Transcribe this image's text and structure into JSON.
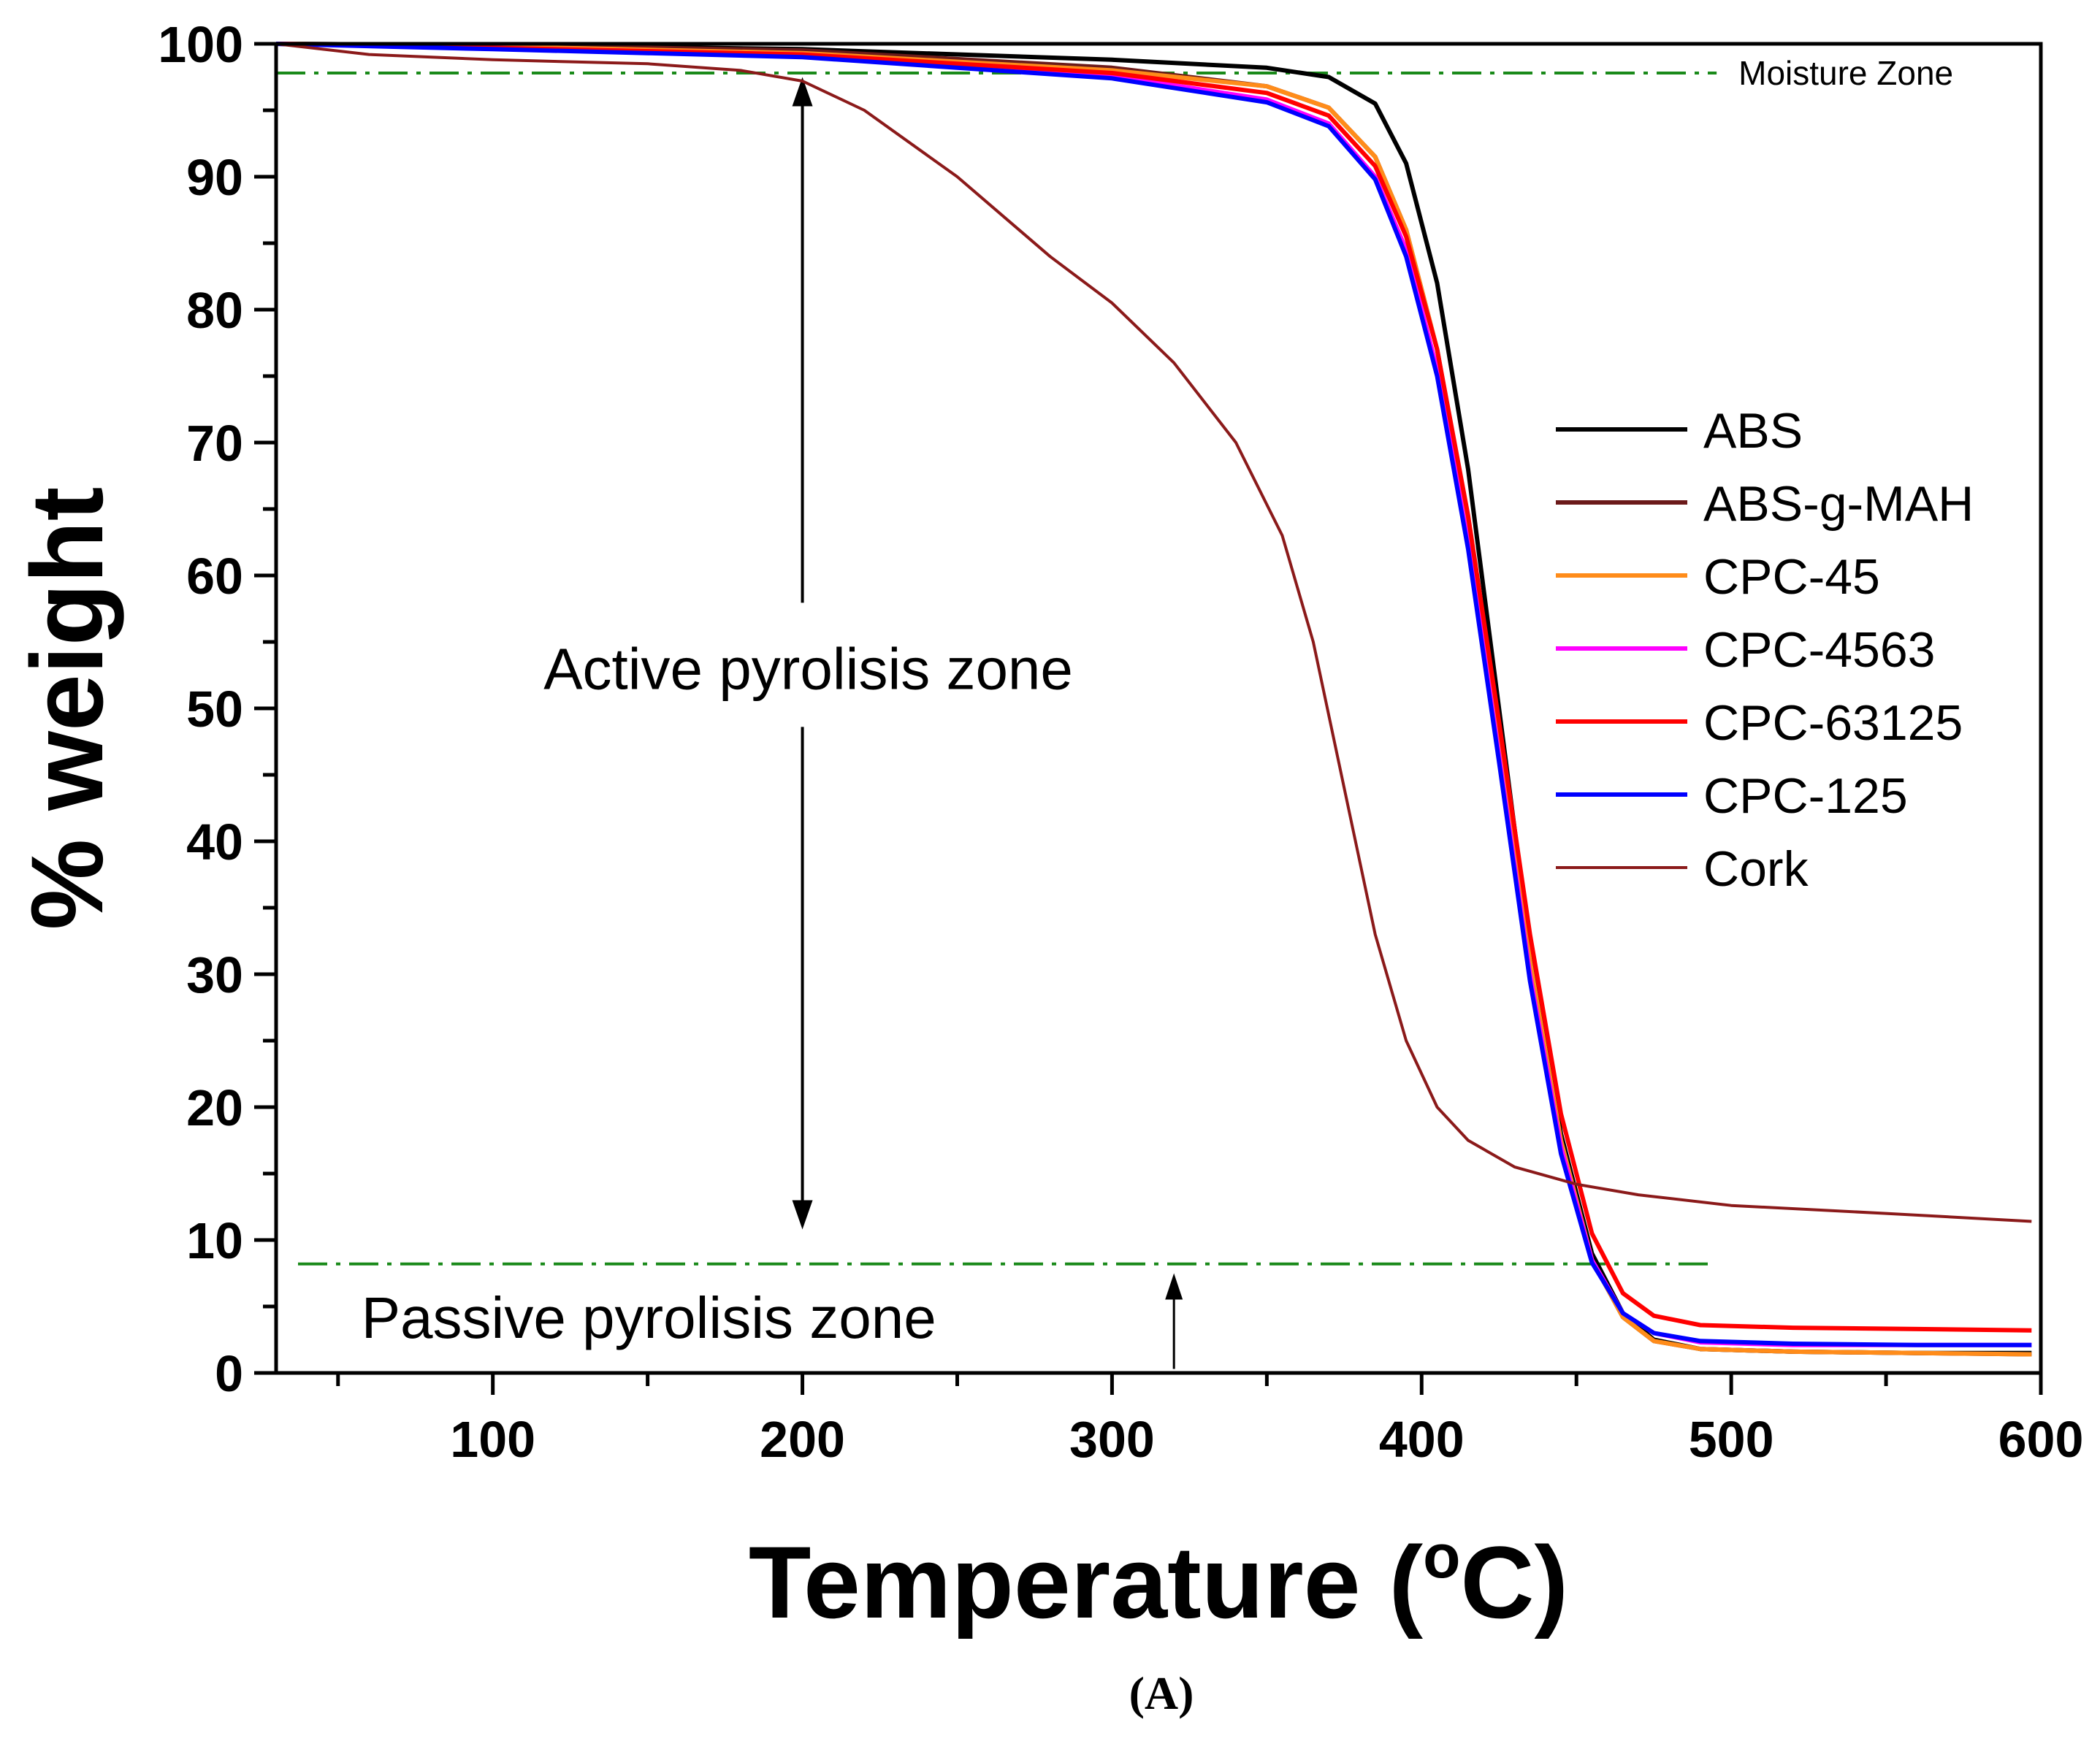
{
  "chart_data": {
    "type": "line",
    "title": "",
    "xlabel": "Temperature (",
    "xlabel_superscript": "o",
    "xlabel_suffix": "C)",
    "ylabel": "% weight",
    "xlim": [
      30,
      600
    ],
    "ylim": [
      0,
      100
    ],
    "x_ticks": [
      100,
      200,
      300,
      400,
      500,
      600
    ],
    "y_ticks": [
      0,
      10,
      20,
      30,
      40,
      50,
      60,
      70,
      80,
      90,
      100
    ],
    "grid": false,
    "legend_position": "right",
    "series": [
      {
        "name": "ABS",
        "color": "#000000",
        "points": [
          [
            30,
            100
          ],
          [
            100,
            99.9
          ],
          [
            200,
            99.6
          ],
          [
            300,
            98.8
          ],
          [
            350,
            98.2
          ],
          [
            370,
            97.5
          ],
          [
            385,
            95.5
          ],
          [
            395,
            91
          ],
          [
            405,
            82
          ],
          [
            415,
            68
          ],
          [
            425,
            50
          ],
          [
            435,
            32
          ],
          [
            445,
            18
          ],
          [
            455,
            9
          ],
          [
            465,
            4.5
          ],
          [
            475,
            2.5
          ],
          [
            490,
            1.8
          ],
          [
            520,
            1.6
          ],
          [
            560,
            1.5
          ],
          [
            597,
            1.5
          ]
        ]
      },
      {
        "name": "ABS-g-MAH",
        "color": "#6b1a1a",
        "points": [
          [
            30,
            100
          ],
          [
            100,
            99.9
          ],
          [
            200,
            99.5
          ],
          [
            300,
            98.2
          ],
          [
            350,
            96.8
          ],
          [
            370,
            95.2
          ],
          [
            385,
            91.5
          ],
          [
            395,
            86
          ],
          [
            405,
            77
          ],
          [
            415,
            64
          ],
          [
            425,
            48
          ],
          [
            435,
            31
          ],
          [
            445,
            17.5
          ],
          [
            455,
            8.5
          ],
          [
            465,
            4.2
          ],
          [
            475,
            2.4
          ],
          [
            490,
            1.8
          ],
          [
            520,
            1.6
          ],
          [
            560,
            1.5
          ],
          [
            597,
            1.4
          ]
        ]
      },
      {
        "name": "CPC-45",
        "color": "#ff8c1a",
        "points": [
          [
            30,
            100
          ],
          [
            100,
            99.8
          ],
          [
            200,
            99.3
          ],
          [
            300,
            98
          ],
          [
            350,
            96.8
          ],
          [
            370,
            95.2
          ],
          [
            385,
            91.5
          ],
          [
            395,
            86
          ],
          [
            405,
            77
          ],
          [
            415,
            64
          ],
          [
            425,
            48
          ],
          [
            435,
            31
          ],
          [
            445,
            17.5
          ],
          [
            455,
            8.5
          ],
          [
            465,
            4.2
          ],
          [
            475,
            2.4
          ],
          [
            490,
            1.8
          ],
          [
            520,
            1.6
          ],
          [
            560,
            1.5
          ],
          [
            597,
            1.4
          ]
        ]
      },
      {
        "name": "CPC-4563",
        "color": "#ff00ff",
        "points": [
          [
            30,
            100
          ],
          [
            100,
            99.7
          ],
          [
            200,
            99.2
          ],
          [
            300,
            97.6
          ],
          [
            350,
            95.8
          ],
          [
            370,
            94
          ],
          [
            385,
            90
          ],
          [
            395,
            84.5
          ],
          [
            405,
            75.5
          ],
          [
            415,
            62.5
          ],
          [
            425,
            46.5
          ],
          [
            435,
            30
          ],
          [
            445,
            17
          ],
          [
            455,
            8.5
          ],
          [
            465,
            4.5
          ],
          [
            475,
            3
          ],
          [
            490,
            2.3
          ],
          [
            520,
            2.1
          ],
          [
            560,
            2.1
          ],
          [
            597,
            2.1
          ]
        ]
      },
      {
        "name": "CPC-63125",
        "color": "#ff0000",
        "points": [
          [
            30,
            100
          ],
          [
            100,
            99.7
          ],
          [
            200,
            99.2
          ],
          [
            300,
            97.8
          ],
          [
            350,
            96.3
          ],
          [
            370,
            94.6
          ],
          [
            385,
            90.8
          ],
          [
            395,
            85.5
          ],
          [
            405,
            77
          ],
          [
            415,
            64.5
          ],
          [
            425,
            49
          ],
          [
            435,
            33
          ],
          [
            445,
            19.5
          ],
          [
            455,
            10.5
          ],
          [
            465,
            6
          ],
          [
            475,
            4.3
          ],
          [
            490,
            3.6
          ],
          [
            520,
            3.4
          ],
          [
            560,
            3.3
          ],
          [
            597,
            3.2
          ]
        ]
      },
      {
        "name": "CPC-125",
        "color": "#0000ff",
        "points": [
          [
            30,
            100
          ],
          [
            100,
            99.6
          ],
          [
            200,
            99
          ],
          [
            300,
            97.4
          ],
          [
            350,
            95.6
          ],
          [
            370,
            93.8
          ],
          [
            385,
            89.8
          ],
          [
            395,
            84
          ],
          [
            405,
            75
          ],
          [
            415,
            62
          ],
          [
            425,
            46
          ],
          [
            435,
            29.5
          ],
          [
            445,
            16.5
          ],
          [
            455,
            8.3
          ],
          [
            465,
            4.5
          ],
          [
            475,
            3
          ],
          [
            490,
            2.4
          ],
          [
            520,
            2.2
          ],
          [
            560,
            2.1
          ],
          [
            597,
            2.1
          ]
        ]
      },
      {
        "name": "Cork",
        "color": "#8b1a1a",
        "points": [
          [
            30,
            100
          ],
          [
            60,
            99.2
          ],
          [
            100,
            98.8
          ],
          [
            150,
            98.5
          ],
          [
            180,
            98
          ],
          [
            200,
            97.2
          ],
          [
            220,
            95
          ],
          [
            250,
            90
          ],
          [
            280,
            84
          ],
          [
            300,
            80.5
          ],
          [
            320,
            76
          ],
          [
            340,
            70
          ],
          [
            355,
            63
          ],
          [
            365,
            55
          ],
          [
            375,
            44
          ],
          [
            385,
            33
          ],
          [
            395,
            25
          ],
          [
            405,
            20
          ],
          [
            415,
            17.5
          ],
          [
            430,
            15.5
          ],
          [
            450,
            14.2
          ],
          [
            470,
            13.4
          ],
          [
            500,
            12.6
          ],
          [
            550,
            12
          ],
          [
            597,
            11.4
          ]
        ]
      }
    ],
    "annotations": {
      "moisture_zone": {
        "label": "Moisture Zone",
        "y": 97.8,
        "x_start": 30,
        "x_end": 500
      },
      "active_zone": {
        "label": "Active pyrolisis zone",
        "x": 200,
        "y": 53,
        "arrow_top": 97.5,
        "arrow_bottom": 10.8
      },
      "passive_zone": {
        "label": "Passive pyrolisis zone",
        "x": 100,
        "y": 4,
        "line_y": 8.2,
        "line_x_end": 495,
        "arrow_x": 320,
        "arrow_from": 0.3,
        "arrow_to": 7.5
      }
    },
    "panel_label": "(A)"
  }
}
